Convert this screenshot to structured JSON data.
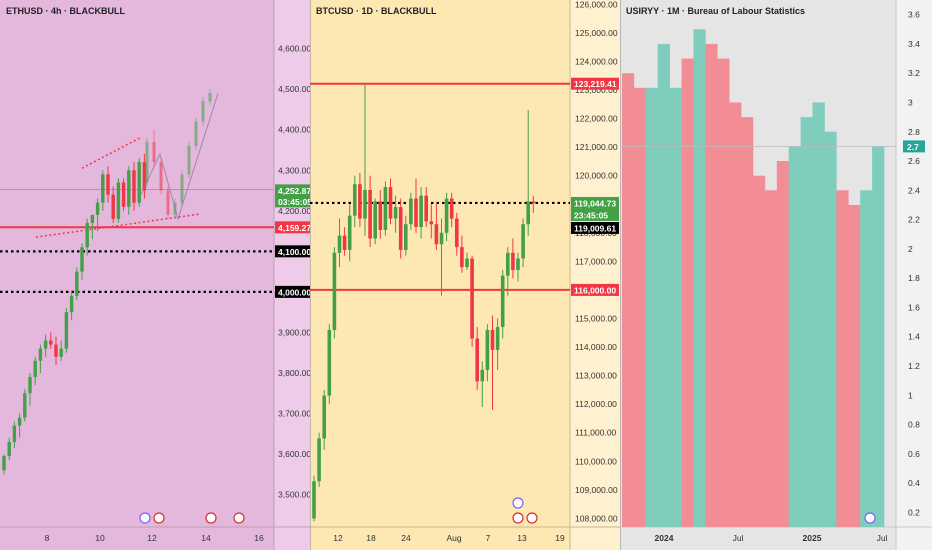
{
  "chart_data": [
    {
      "type": "candlestick",
      "title": "ETHUSD · 4h · BLACKBULL",
      "background": "#e3b8dc",
      "y_ticks": [
        3500,
        3600,
        3700,
        3800,
        3900,
        4000,
        4100,
        4200,
        4300,
        4400,
        4500,
        4600
      ],
      "ylim": [
        3420,
        4720
      ],
      "x_ticks": [
        "8",
        "10",
        "12",
        "14",
        "16"
      ],
      "levels": {
        "resistance": 4159.27,
        "dotted": [
          4100,
          4000
        ],
        "current": 4252.87
      },
      "price_labels": [
        {
          "text": "4,252.87",
          "color": "#43a047"
        },
        {
          "text": "03:45:05",
          "color": "#43a047"
        },
        {
          "text": "4,159.27",
          "color": "#f23645"
        },
        {
          "text": "4,100.00",
          "color": "#000000"
        },
        {
          "text": "4,000.00",
          "color": "#000000"
        }
      ],
      "candles": [
        [
          3560,
          3600,
          3550,
          3595
        ],
        [
          3595,
          3640,
          3585,
          3630
        ],
        [
          3630,
          3680,
          3615,
          3670
        ],
        [
          3670,
          3700,
          3640,
          3690
        ],
        [
          3690,
          3760,
          3680,
          3750
        ],
        [
          3750,
          3800,
          3720,
          3790
        ],
        [
          3790,
          3840,
          3770,
          3830
        ],
        [
          3830,
          3870,
          3800,
          3860
        ],
        [
          3860,
          3895,
          3840,
          3880
        ],
        [
          3880,
          3900,
          3860,
          3870
        ],
        [
          3870,
          3890,
          3820,
          3840
        ],
        [
          3840,
          3880,
          3830,
          3860
        ],
        [
          3860,
          3960,
          3850,
          3950
        ],
        [
          3950,
          4000,
          3930,
          3990
        ],
        [
          3990,
          4060,
          3980,
          4050
        ],
        [
          4050,
          4120,
          4030,
          4110
        ],
        [
          4110,
          4180,
          4090,
          4170
        ],
        [
          4170,
          4190,
          4130,
          4190
        ],
        [
          4190,
          4230,
          4150,
          4220
        ],
        [
          4220,
          4300,
          4200,
          4290
        ],
        [
          4290,
          4310,
          4220,
          4240
        ],
        [
          4240,
          4260,
          4170,
          4180
        ],
        [
          4180,
          4280,
          4170,
          4270
        ],
        [
          4270,
          4280,
          4200,
          4210
        ],
        [
          4210,
          4310,
          4190,
          4300
        ],
        [
          4300,
          4320,
          4200,
          4220
        ],
        [
          4220,
          4330,
          4210,
          4320
        ],
        [
          4320,
          4340,
          4230,
          4250
        ]
      ],
      "projection": [
        [
          4270,
          4380,
          4260,
          4370
        ],
        [
          4370,
          4400,
          4310,
          4320
        ],
        [
          4320,
          4330,
          4240,
          4250
        ],
        [
          4250,
          4260,
          4180,
          4190
        ],
        [
          4190,
          4230,
          4180,
          4220
        ],
        [
          4220,
          4300,
          4210,
          4290
        ],
        [
          4290,
          4370,
          4280,
          4360
        ],
        [
          4360,
          4430,
          4350,
          4420
        ],
        [
          4420,
          4480,
          4410,
          4470
        ],
        [
          4470,
          4500,
          4460,
          4490
        ]
      ],
      "xlabel": "",
      "ylabel": ""
    },
    {
      "type": "candlestick",
      "title": "BTCUSD · 1D · BLACKBULL",
      "background": "#fde7b3",
      "y_ticks": [
        108000,
        109000,
        110000,
        111000,
        112000,
        113000,
        114000,
        115000,
        116000,
        117000,
        118000,
        119000,
        120000,
        121000,
        122000,
        123000,
        124000,
        125000,
        126000
      ],
      "ylim": [
        107700,
        126150
      ],
      "x_ticks": [
        "12",
        "18",
        "24",
        "Aug",
        "7",
        "13",
        "19"
      ],
      "levels": {
        "resistance": 123219.41,
        "support": 116000,
        "dotted": 119044.73
      },
      "price_labels": [
        {
          "text": "123,219.41",
          "color": "#f23645"
        },
        {
          "text": "119,044.73",
          "color": "#43a047"
        },
        {
          "text": "23:45:05",
          "color": "#43a047"
        },
        {
          "text": "119,009.61",
          "color": "#000000"
        },
        {
          "text": "116,000.00",
          "color": "#f23645"
        }
      ],
      "candles": [
        [
          108000,
          109500,
          107900,
          109300
        ],
        [
          109300,
          111000,
          109100,
          110800
        ],
        [
          110800,
          112500,
          110400,
          112300
        ],
        [
          112300,
          114800,
          112000,
          114600
        ],
        [
          114600,
          117500,
          114300,
          117300
        ],
        [
          117300,
          118500,
          116800,
          117900
        ],
        [
          117900,
          118200,
          117200,
          117400
        ],
        [
          117400,
          119000,
          117000,
          118600
        ],
        [
          118600,
          120000,
          118200,
          119700
        ],
        [
          119700,
          120100,
          118200,
          118500
        ],
        [
          118500,
          123200,
          117900,
          119500
        ],
        [
          119500,
          120000,
          117500,
          117800
        ],
        [
          117800,
          119200,
          117600,
          119100
        ],
        [
          119100,
          119500,
          117800,
          118100
        ],
        [
          118100,
          119800,
          117900,
          119600
        ],
        [
          119600,
          119900,
          118300,
          118500
        ],
        [
          118500,
          119300,
          118000,
          118900
        ],
        [
          118900,
          119200,
          117100,
          117400
        ],
        [
          117400,
          118600,
          117200,
          118300
        ],
        [
          118300,
          119400,
          118100,
          119200
        ],
        [
          119200,
          119900,
          118000,
          118200
        ],
        [
          118200,
          119600,
          117800,
          119300
        ],
        [
          119300,
          119600,
          118200,
          118400
        ],
        [
          118400,
          119000,
          117800,
          118300
        ],
        [
          118300,
          119000,
          117400,
          117600
        ],
        [
          117600,
          118500,
          115800,
          118000
        ],
        [
          118000,
          119400,
          117700,
          119200
        ],
        [
          119200,
          119400,
          118200,
          118500
        ],
        [
          118500,
          118700,
          117200,
          117500
        ],
        [
          117500,
          117900,
          116600,
          116800
        ],
        [
          116800,
          117300,
          116700,
          117100
        ],
        [
          117100,
          117200,
          114000,
          114300
        ],
        [
          114300,
          114700,
          112500,
          112800
        ],
        [
          112800,
          113500,
          111900,
          113200
        ],
        [
          113200,
          114800,
          112800,
          114600
        ],
        [
          114600,
          115100,
          111800,
          113900
        ],
        [
          113900,
          115000,
          113200,
          114700
        ],
        [
          114700,
          116700,
          114300,
          116500
        ],
        [
          116500,
          117500,
          115800,
          117300
        ],
        [
          117300,
          117800,
          116400,
          116700
        ],
        [
          116700,
          117300,
          116300,
          117100
        ],
        [
          117100,
          118500,
          116800,
          118300
        ],
        [
          118300,
          122300,
          117900,
          119100
        ],
        [
          119100,
          119300,
          118700,
          119044
        ]
      ],
      "xlabel": "",
      "ylabel": ""
    },
    {
      "type": "bar",
      "title": "USIRYY · 1M · Bureau of Labour Statistics",
      "background": "#e5e5e5",
      "x_ticks": [
        "2024",
        "Jul",
        "2025",
        "Jul"
      ],
      "y_ticks": [
        0.2,
        0.4,
        0.6,
        0.8,
        1,
        1.2,
        1.4,
        1.6,
        1.8,
        2,
        2.2,
        2.4,
        2.6,
        2.8,
        3,
        3.2,
        3.4,
        3.6
      ],
      "ylim": [
        0.1,
        3.7
      ],
      "current_label": "2.7",
      "values": [
        3.2,
        3.1,
        3.1,
        3.4,
        3.1,
        3.3,
        3.5,
        3.4,
        3.3,
        3.0,
        2.9,
        2.5,
        2.4,
        2.6,
        2.7,
        2.9,
        3.0,
        2.8,
        2.4,
        2.3,
        2.4,
        2.7
      ],
      "colors": [
        "#f28c95",
        "#f28c95",
        "#7fcdbd",
        "#7fcdbd",
        "#7fcdbd",
        "#f28c95",
        "#7fcdbd",
        "#f28c95",
        "#f28c95",
        "#f28c95",
        "#f28c95",
        "#f28c95",
        "#f28c95",
        "#f28c95",
        "#7fcdbd",
        "#7fcdbd",
        "#7fcdbd",
        "#7fcdbd",
        "#f28c95",
        "#f28c95",
        "#7fcdbd",
        "#7fcdbd"
      ],
      "xlabel": "",
      "ylabel": ""
    }
  ]
}
